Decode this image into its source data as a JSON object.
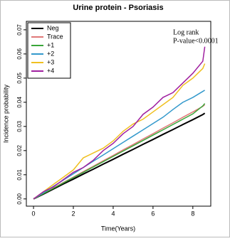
{
  "chart_data": {
    "type": "line",
    "title": "Urine protein - Psoriasis",
    "x_label": "Time(Years)",
    "y_label": "Incidence probability",
    "annotations": [
      "Log rank",
      "P-value<0.0001"
    ],
    "x": [
      0,
      0.5,
      1,
      1.5,
      2,
      2.5,
      3,
      3.5,
      4,
      4.5,
      5,
      5.5,
      6,
      6.5,
      7,
      7.5,
      8,
      8.5,
      8.6
    ],
    "series": [
      {
        "name": "Neg",
        "color": "#000000",
        "values": [
          0,
          0.002,
          0.0041,
          0.0062,
          0.0082,
          0.0103,
          0.0123,
          0.0144,
          0.0164,
          0.0185,
          0.0205,
          0.0226,
          0.0246,
          0.0267,
          0.0287,
          0.0308,
          0.0328,
          0.0349,
          0.0355
        ]
      },
      {
        "name": "Trace",
        "color": "#e07878",
        "values": [
          0,
          0.0023,
          0.0045,
          0.0068,
          0.009,
          0.0113,
          0.0135,
          0.0158,
          0.018,
          0.0203,
          0.0225,
          0.0248,
          0.027,
          0.0293,
          0.0315,
          0.0338,
          0.036,
          0.0383,
          0.039
        ]
      },
      {
        "name": "+1",
        "color": "#3aa63a",
        "values": [
          0,
          0.0022,
          0.0044,
          0.0066,
          0.0088,
          0.011,
          0.0132,
          0.0154,
          0.0176,
          0.0198,
          0.022,
          0.0242,
          0.0264,
          0.0286,
          0.0308,
          0.033,
          0.0352,
          0.0385,
          0.0395
        ]
      },
      {
        "name": "+2",
        "color": "#3399cc",
        "values": [
          0,
          0.0026,
          0.0052,
          0.0078,
          0.0104,
          0.013,
          0.0156,
          0.0182,
          0.0208,
          0.0234,
          0.026,
          0.0286,
          0.0312,
          0.0338,
          0.037,
          0.04,
          0.042,
          0.0445,
          0.045
        ]
      },
      {
        "name": "+3",
        "color": "#f0c020",
        "values": [
          0,
          0.003,
          0.006,
          0.009,
          0.012,
          0.017,
          0.019,
          0.021,
          0.024,
          0.028,
          0.031,
          0.033,
          0.036,
          0.039,
          0.042,
          0.047,
          0.05,
          0.054,
          0.056
        ]
      },
      {
        "name": "+4",
        "color": "#a020a0",
        "values": [
          0,
          0.003,
          0.005,
          0.008,
          0.011,
          0.013,
          0.016,
          0.02,
          0.023,
          0.027,
          0.03,
          0.035,
          0.038,
          0.042,
          0.044,
          0.048,
          0.052,
          0.057,
          0.063
        ]
      }
    ],
    "xlim": [
      -0.36,
      8.9
    ],
    "ylim": [
      -0.003,
      0.0735
    ],
    "xticks": [
      0,
      2,
      4,
      6,
      8
    ],
    "yticks": [
      {
        "value": 0,
        "label": "0.00"
      },
      {
        "value": 0.01,
        "label": "0.01"
      },
      {
        "value": 0.02,
        "label": "0.02"
      },
      {
        "value": 0.03,
        "label": "0.03"
      },
      {
        "value": 0.04,
        "label": "0.04"
      },
      {
        "value": 0.05,
        "label": "0.05"
      },
      {
        "value": 0.06,
        "label": "0.06"
      },
      {
        "value": 0.07,
        "label": "0.07"
      }
    ],
    "legend": "top-left"
  }
}
